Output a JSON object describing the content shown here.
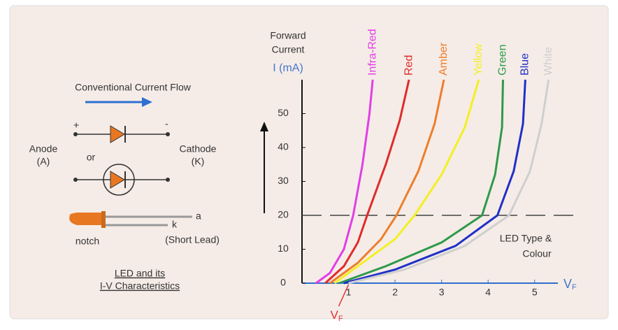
{
  "chart_data": {
    "type": "line",
    "y_label": [
      "Forward",
      "Current"
    ],
    "y_unit": "I (mA)",
    "x_label": "V",
    "x_label_sub": "F",
    "xlim": [
      0,
      5.5
    ],
    "xticks": [
      1,
      2,
      3,
      4,
      5
    ],
    "ylim": [
      0,
      60
    ],
    "yticks": [
      0,
      10,
      20,
      30,
      40,
      50
    ],
    "reference_y": 20,
    "annotation": [
      "LED Type &",
      "Colour"
    ],
    "vf_marker": {
      "label": "V",
      "sub": "F"
    },
    "series": [
      {
        "name": "Infra-Red",
        "color": "#e23ee6",
        "x": [
          0.3,
          0.6,
          0.9,
          1.1,
          1.3,
          1.45,
          1.52
        ],
        "values": [
          0,
          3,
          10,
          20,
          35,
          50,
          60
        ]
      },
      {
        "name": "Red",
        "color": "#e02b2b",
        "x": [
          0.5,
          0.9,
          1.2,
          1.4,
          1.8,
          2.1,
          2.3
        ],
        "values": [
          0,
          5,
          12,
          20,
          35,
          48,
          60
        ]
      },
      {
        "name": "Amber",
        "color": "#ef7d2a",
        "x": [
          0.6,
          1.2,
          1.7,
          2.03,
          2.5,
          2.85,
          3.05
        ],
        "values": [
          0,
          6,
          13,
          20,
          33,
          47,
          60
        ]
      },
      {
        "name": "Yellow",
        "color": "#f2f023",
        "x": [
          0.7,
          1.4,
          2.0,
          2.42,
          3.0,
          3.5,
          3.8
        ],
        "values": [
          0,
          7,
          13,
          20,
          32,
          46,
          60
        ]
      },
      {
        "name": "Green",
        "color": "#2e9a4a",
        "x": [
          0.8,
          1.8,
          3.0,
          3.87,
          4.15,
          4.3,
          4.32
        ],
        "values": [
          0,
          5,
          12,
          20,
          32,
          46,
          60
        ]
      },
      {
        "name": "Blue",
        "color": "#2030c8",
        "x": [
          0.9,
          2.0,
          3.3,
          4.2,
          4.55,
          4.75,
          4.8
        ],
        "values": [
          0,
          4,
          11,
          20,
          33,
          47,
          60
        ]
      },
      {
        "name": "White",
        "color": "#cfcfcf",
        "x": [
          1.0,
          2.2,
          3.5,
          4.45,
          4.9,
          5.15,
          5.3
        ],
        "values": [
          0,
          4,
          11,
          20,
          33,
          47,
          60
        ]
      }
    ]
  },
  "diagram": {
    "flow": "Conventional Current Flow",
    "plus": "+",
    "minus": "-",
    "anode": [
      "Anode",
      "(A)"
    ],
    "or": "or",
    "cathode": [
      "Cathode",
      "(K)"
    ],
    "lead_a": "a",
    "lead_k": "k",
    "notch": "notch",
    "short_lead": "(Short Lead)",
    "caption": [
      "LED and its",
      "I-V Characteristics"
    ]
  }
}
